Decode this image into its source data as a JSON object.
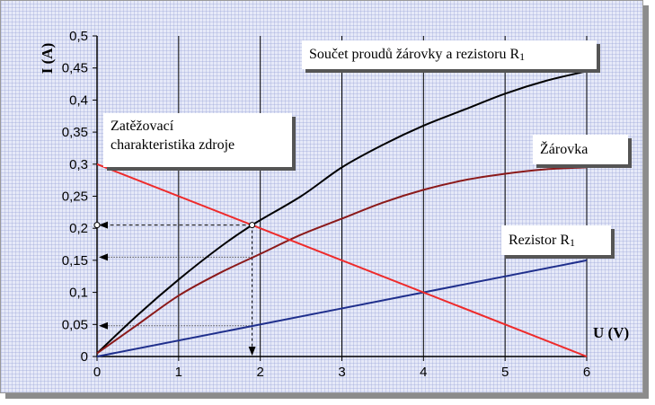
{
  "chart_data": {
    "type": "line",
    "title": "",
    "xlabel": "U (V)",
    "ylabel": "I (A)",
    "xlim": [
      0,
      6
    ],
    "ylim": [
      0,
      0.5
    ],
    "x_ticks": [
      "0",
      "1",
      "2",
      "3",
      "4",
      "5",
      "6"
    ],
    "y_ticks": [
      "0",
      "0,05",
      "0,1",
      "0,15",
      "0,2",
      "0,25",
      "0,3",
      "0,35",
      "0,4",
      "0,45",
      "0,5"
    ],
    "grid": "vertical",
    "series": [
      {
        "key": "sum",
        "color": "#000000",
        "x": [
          0,
          0.5,
          1,
          1.5,
          1.9,
          2.5,
          3,
          3.5,
          4,
          4.5,
          5,
          5.5,
          6
        ],
        "y": [
          0.005,
          0.065,
          0.12,
          0.17,
          0.205,
          0.25,
          0.295,
          0.33,
          0.36,
          0.385,
          0.41,
          0.43,
          0.445
        ]
      },
      {
        "key": "bulb",
        "color": "#8b1a1a",
        "x": [
          0,
          0.5,
          1,
          1.5,
          2,
          2.5,
          3,
          3.5,
          4,
          4.5,
          5,
          5.5,
          6
        ],
        "y": [
          0.005,
          0.05,
          0.095,
          0.13,
          0.16,
          0.19,
          0.215,
          0.24,
          0.26,
          0.275,
          0.285,
          0.292,
          0.295
        ]
      },
      {
        "key": "resistor",
        "color": "#1f2f8c",
        "x": [
          0,
          6
        ],
        "y": [
          0,
          0.15
        ]
      },
      {
        "key": "source_load",
        "color": "#ee2b2b",
        "x": [
          0,
          6
        ],
        "y": [
          0.3,
          0
        ]
      }
    ],
    "operating_point": {
      "x": 1.9,
      "y": 0.205
    },
    "projection_levels_y": [
      0.205,
      0.155,
      0.048
    ],
    "annotations": {
      "source_line1": "Zatěžovací",
      "source_line2": "charakteristika zdroje",
      "sum_label": "Součet proudů žárovky a rezistoru R",
      "sum_sub": "1",
      "bulb_label": "Žárovka",
      "resistor_label": "Rezistor R",
      "resistor_sub": "1"
    }
  }
}
